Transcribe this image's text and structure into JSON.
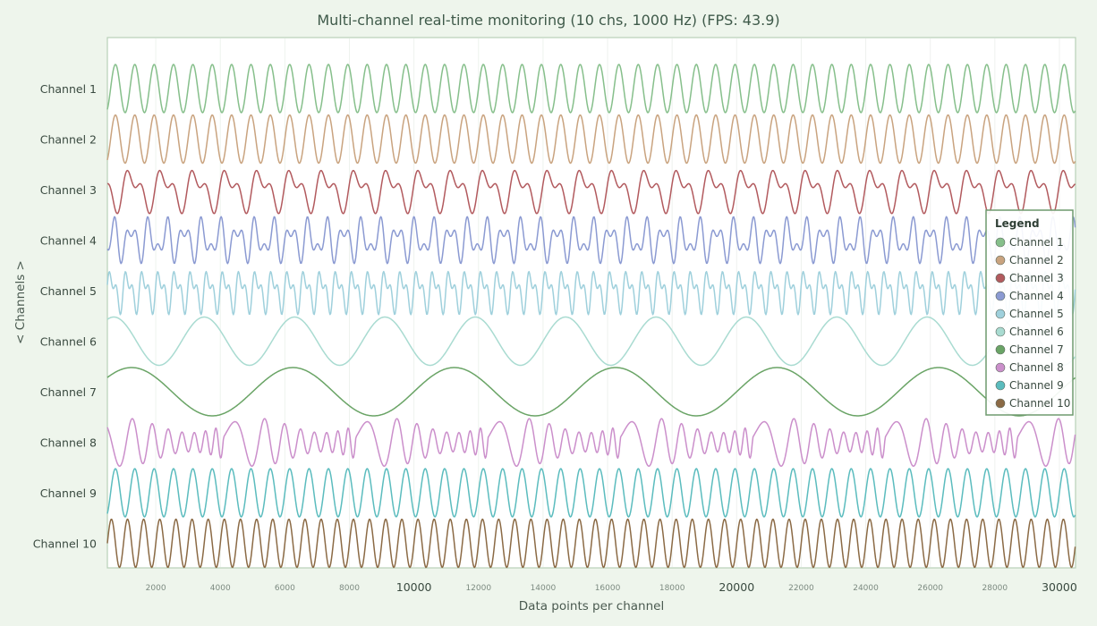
{
  "chart_data": {
    "type": "line",
    "title": "Multi-channel real-time monitoring (10 chs, 1000 Hz) (FPS: 43.9)",
    "xlabel": "Data points per channel",
    "ylabel": "< Channels >",
    "xlim": [
      500,
      30500
    ],
    "x_ticks_minor": [
      "2000",
      "4000",
      "6000",
      "8000",
      "12000",
      "14000",
      "16000",
      "18000",
      "22000",
      "24000",
      "26000",
      "28000"
    ],
    "x_ticks_major": [
      "10000",
      "20000",
      "30000"
    ],
    "grid": true,
    "legend": {
      "title": "Legend",
      "placement": "right"
    },
    "series": [
      {
        "name": "Channel 1",
        "color": "#86bf8b",
        "waveform": "sine",
        "period_points": 600
      },
      {
        "name": "Channel 2",
        "color": "#c9a37f",
        "waveform": "sine",
        "period_points": 600
      },
      {
        "name": "Channel 3",
        "color": "#b25a5e",
        "waveform": "harmonic",
        "period_points": 1000
      },
      {
        "name": "Channel 4",
        "color": "#8b9ad2",
        "waveform": "beat",
        "period_points": 1000
      },
      {
        "name": "Channel 5",
        "color": "#9fd0dc",
        "waveform": "harmonic",
        "period_points": 500
      },
      {
        "name": "Channel 6",
        "color": "#a9dbd1",
        "waveform": "sine",
        "period_points": 2800
      },
      {
        "name": "Channel 7",
        "color": "#6aa466",
        "waveform": "sine",
        "period_points": 5000
      },
      {
        "name": "Channel 8",
        "color": "#cb8fcb",
        "waveform": "chirp",
        "period_points": 4100
      },
      {
        "name": "Channel 9",
        "color": "#5bbcbe",
        "waveform": "sine",
        "period_points": 600
      },
      {
        "name": "Channel 10",
        "color": "#8b6a45",
        "waveform": "sine",
        "period_points": 500
      }
    ]
  }
}
